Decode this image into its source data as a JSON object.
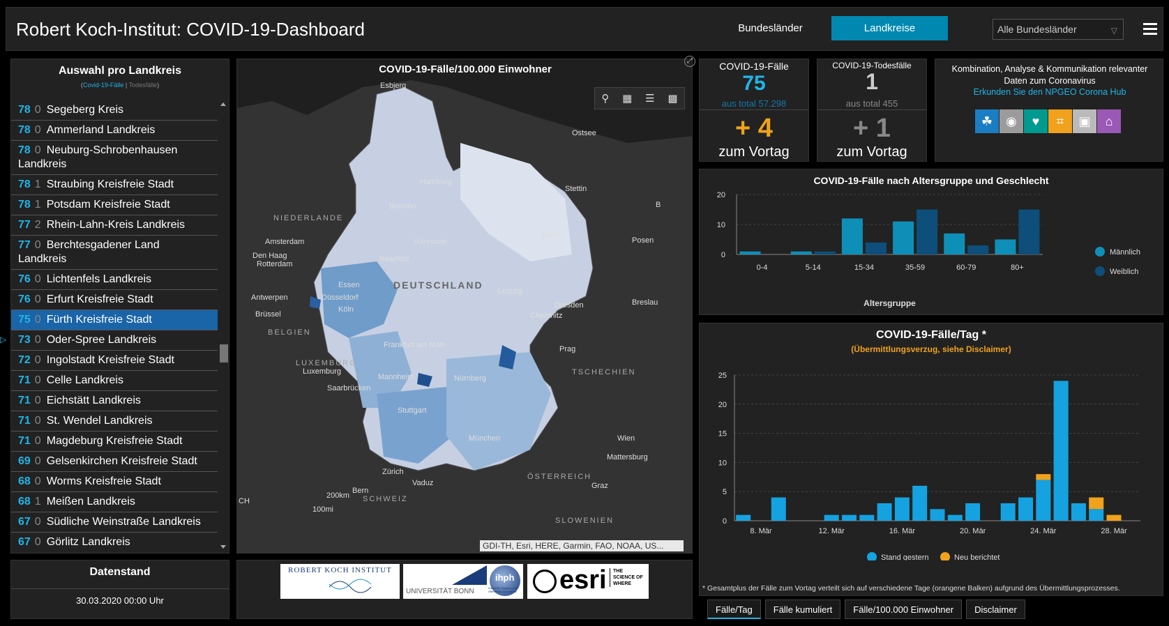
{
  "header": {
    "title": "Robert Koch-Institut: COVID-19-Dashboard",
    "tab_bundeslaender": "Bundesländer",
    "tab_landkreise": "Landkreise",
    "select_value": "Alle Bundesländer"
  },
  "list": {
    "title": "Auswahl pro Landkreis",
    "sub_cases": "Covid-19-Fälle",
    "sub_sep": " | ",
    "sub_deaths": "Todesfälle",
    "paren_open": "(",
    "paren_close": ")",
    "items": [
      {
        "value": "78",
        "deaths": "0",
        "name": "Segeberg Kreis"
      },
      {
        "value": "78",
        "deaths": "0",
        "name": "Ammerland Landkreis"
      },
      {
        "value": "78",
        "deaths": "0",
        "name": "Neuburg-Schrobenhausen Landkreis"
      },
      {
        "value": "78",
        "deaths": "1",
        "name": "Straubing Kreisfreie Stadt"
      },
      {
        "value": "78",
        "deaths": "1",
        "name": "Potsdam Kreisfreie Stadt"
      },
      {
        "value": "77",
        "deaths": "2",
        "name": "Rhein-Lahn-Kreis Landkreis"
      },
      {
        "value": "77",
        "deaths": "0",
        "name": "Berchtesgadener Land Landkreis"
      },
      {
        "value": "76",
        "deaths": "0",
        "name": "Lichtenfels Landkreis"
      },
      {
        "value": "76",
        "deaths": "0",
        "name": "Erfurt Kreisfreie Stadt"
      },
      {
        "value": "75",
        "deaths": "0",
        "name": "Fürth Kreisfreie Stadt"
      },
      {
        "value": "73",
        "deaths": "0",
        "name": "Oder-Spree Landkreis"
      },
      {
        "value": "72",
        "deaths": "0",
        "name": "Ingolstadt Kreisfreie Stadt"
      },
      {
        "value": "71",
        "deaths": "0",
        "name": "Celle Landkreis"
      },
      {
        "value": "71",
        "deaths": "0",
        "name": "Eichstätt Landkreis"
      },
      {
        "value": "71",
        "deaths": "0",
        "name": "St. Wendel Landkreis"
      },
      {
        "value": "71",
        "deaths": "0",
        "name": "Magdeburg Kreisfreie Stadt"
      },
      {
        "value": "69",
        "deaths": "0",
        "name": "Gelsenkirchen Kreisfreie Stadt"
      },
      {
        "value": "68",
        "deaths": "0",
        "name": "Worms Kreisfreie Stadt"
      },
      {
        "value": "68",
        "deaths": "1",
        "name": "Meißen Landkreis"
      },
      {
        "value": "67",
        "deaths": "0",
        "name": "Südliche Weinstraße Landkreis"
      },
      {
        "value": "67",
        "deaths": "0",
        "name": "Görlitz Landkreis"
      }
    ]
  },
  "datenstand": {
    "title": "Datenstand",
    "value": "30.03.2020 00:00 Uhr"
  },
  "map": {
    "title": "COVID-19-Fälle/100.000 Einwohner",
    "attribution": "GDI-TH, Esri, HERE, Garmin, FAO, NOAA, US...",
    "labels": {
      "esbjerg": "Esbjerg",
      "ostsee": "Ostsee",
      "hamburg": "Hamburg",
      "stettin": "Stettin",
      "bremen": "Bremen",
      "niederlande": "NIEDERLANDE",
      "amsterdam": "Amsterdam",
      "hannover": "Hannover",
      "berlin": "Berlin",
      "posen": "Posen",
      "denhaag": "Den Haag",
      "rotterdam": "Rotterdam",
      "bielefeld": "Bielefeld",
      "deutschland": "DEUTSCHLAND",
      "essen": "Essen",
      "duesseldorf": "Düsseldorf",
      "leipzig": "Leipzig",
      "dresden": "Dresden",
      "breslau": "Breslau",
      "antwerpen": "Antwerpen",
      "koeln": "Köln",
      "bruessel": "Brüssel",
      "chemnitz": "Chemnitz",
      "belgien": "BELGIEN",
      "frankfurt": "Frankfurt am Main",
      "prag": "Prag",
      "luxemburg_region": "LUXEMBURG",
      "luxemburg": "Luxemburg",
      "tschechien": "TSCHECHIEN",
      "mannheim": "Mannheim",
      "saarbruecken": "Saarbrücken",
      "nuernberg": "Nürnberg",
      "stuttgart": "Stuttgart",
      "wien": "Wien",
      "muenchen": "München",
      "mattersburg": "Mattersburg",
      "zuerich": "Zürich",
      "oesterreich": "ÖSTERREICH",
      "vaduz": "Vaduz",
      "graz": "Graz",
      "bern": "Bern",
      "schweiz": "SCHWEIZ",
      "scale_km": "200km",
      "scale_mi": "100mi",
      "ch": "CH",
      "b": "B",
      "slowenien": "SLOWENIEN"
    }
  },
  "kpi_cases": {
    "label": "COVID-19-Fälle",
    "value": "75",
    "total": "aus total 57.298",
    "delta": "+ 4",
    "delta_label": "zum Vortag"
  },
  "kpi_deaths": {
    "label": "COVID-19-Todesfälle",
    "value": "1",
    "total": "aus total 455",
    "delta": "+ 1",
    "delta_label": "zum Vortag"
  },
  "hub": {
    "text": "Kombination, Analyse & Kommunikation relevanter Daten zum Coronavirus",
    "link": "Erkunden Sie den NPGEO Corona Hub",
    "icons": [
      "plant-hand-icon",
      "map-pin-icon",
      "heart-pulse-icon",
      "network-icon",
      "car-icon",
      "church-icon"
    ],
    "icon_colors": [
      "#1b7dc4",
      "#9b9b9b",
      "#009a90",
      "#f0a21c",
      "#bababa",
      "#9b59b6"
    ]
  },
  "logos": {
    "rki": "ROBERT KOCH INSTITUT",
    "bonn": "UNIVERSITÄT BONN",
    "ihph": "ihph",
    "ihph_sub": "Institut für Hygiene und Öffentliche Gesundheit",
    "esri": "esri",
    "esri_tag": "THE SCIENCE OF WHERE"
  },
  "chart_data": [
    {
      "type": "bar",
      "title": "COVID-19-Fälle nach Altersgruppe und Geschlecht",
      "xlabel": "Altersgruppe",
      "categories": [
        "0-4",
        "5-14",
        "15-34",
        "35-59",
        "60-79",
        "80+"
      ],
      "series": [
        {
          "name": "Männlich",
          "color": "#0e8fb8",
          "values": [
            1,
            1,
            12,
            11,
            7,
            5
          ]
        },
        {
          "name": "Weiblich",
          "color": "#0d4f7a",
          "values": [
            0,
            1,
            4,
            15,
            3,
            15
          ]
        }
      ],
      "ylim": [
        0,
        20
      ],
      "yticks": [
        0,
        10,
        20
      ],
      "legend": "right"
    },
    {
      "type": "bar",
      "title": "COVID-19-Fälle/Tag *",
      "subtitle": "(Übermittlungsverzug, siehe Disclaimer)",
      "stacked": true,
      "x": [
        "7. Mär",
        "8. Mär",
        "9. Mär",
        "10. Mär",
        "11. Mär",
        "12. Mär",
        "13. Mär",
        "14. Mär",
        "15. Mär",
        "16. Mär",
        "17. Mär",
        "18. Mär",
        "19. Mär",
        "20. Mär",
        "21. Mär",
        "22. Mär",
        "23. Mär",
        "24. Mär",
        "25. Mär",
        "26. Mär",
        "27. Mär",
        "28. Mär",
        "29. Mär"
      ],
      "xticks": [
        "8. Mär",
        "12. Mär",
        "16. Mär",
        "20. Mär",
        "24. Mär",
        "28. Mär"
      ],
      "series": [
        {
          "name": "Stand gestern",
          "color": "#15a2e0",
          "values": [
            1,
            0,
            4,
            0,
            0,
            1,
            1,
            1,
            3,
            4,
            6,
            2,
            1,
            3,
            0,
            3,
            4,
            7,
            24,
            3,
            2,
            0,
            0
          ]
        },
        {
          "name": "Neu berichtet",
          "color": "#f0a21c",
          "values": [
            0,
            0,
            0,
            0,
            0,
            0,
            0,
            0,
            0,
            0,
            0,
            0,
            0,
            0,
            0,
            0,
            0,
            1,
            0,
            0,
            2,
            1,
            0
          ]
        }
      ],
      "ylim": [
        0,
        25
      ],
      "yticks": [
        0,
        5,
        10,
        15,
        20,
        25
      ],
      "legend": "bottom",
      "footnote": "* Gesamtplus der Fälle zum Vortag verteilt sich auf verschiedene Tage (orangene Balken) aufgrund des Übermittlungsprozesses."
    }
  ],
  "bottom_tabs": [
    "Fälle/Tag",
    "Fälle kumuliert",
    "Fälle/100.000 Einwohner",
    "Disclaimer"
  ]
}
